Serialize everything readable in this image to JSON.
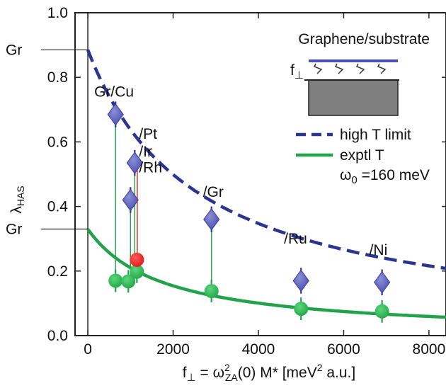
{
  "chart_data": {
    "type": "scatter",
    "xlim": [
      -300,
      8400
    ],
    "ylim": [
      0,
      1.0
    ],
    "x_ticks": [
      0,
      2000,
      4000,
      6000,
      8000
    ],
    "y_ticks": [
      0.0,
      0.2,
      0.4,
      0.6,
      0.8,
      1.0
    ],
    "x_tick_labels": [
      "0",
      "2000",
      "4000",
      "6000",
      "8000"
    ],
    "y_tick_labels": [
      "0.0",
      "0.2",
      "0.4",
      "0.6",
      "0.8",
      "1.0"
    ],
    "xlabel": {
      "pre": "f",
      "pre_sub": "⊥",
      "eq": " = ω",
      "sup": "2",
      "sub": "ZA",
      "post": "(0) M*   [meV",
      "unit_sup": "2",
      "unit_post": " a.u.]"
    },
    "ylabel": {
      "main": "λ",
      "sub": "HAS"
    },
    "gr_marks": {
      "label": "Gr",
      "values": [
        0.885,
        0.33
      ]
    },
    "series": [
      {
        "kind": "high_T",
        "color": "#2b3590",
        "points": [
          {
            "x": 650,
            "y": 0.685,
            "err": 0.04
          },
          {
            "x": 1000,
            "y": 0.42,
            "err": 0.04
          },
          {
            "x": 1100,
            "y": 0.535,
            "err": 0.04
          },
          {
            "x": 2900,
            "y": 0.36,
            "err": 0.04
          },
          {
            "x": 5000,
            "y": 0.17,
            "err": 0.04
          },
          {
            "x": 6900,
            "y": 0.165,
            "err": 0.04
          }
        ],
        "curve": {
          "a": 0.885,
          "b": 0.000387
        }
      },
      {
        "kind": "exptl_T",
        "color": "#22a24a",
        "points": [
          {
            "x": 650,
            "y": 0.17,
            "err": 0.035
          },
          {
            "x": 950,
            "y": 0.168,
            "err": 0.035
          },
          {
            "x": 1150,
            "y": 0.198,
            "err": 0.035
          },
          {
            "x": 2900,
            "y": 0.138,
            "err": 0.035
          },
          {
            "x": 5000,
            "y": 0.083,
            "err": 0.035
          },
          {
            "x": 6900,
            "y": 0.075,
            "err": 0.035
          }
        ],
        "curve": {
          "a": 0.33,
          "b": 0.00057
        }
      },
      {
        "kind": "Pt",
        "color": "#e8231c",
        "points": [
          {
            "x": 1150,
            "y": 0.235,
            "err": 0.0
          }
        ]
      }
    ],
    "drop_lines": [
      {
        "x": 650,
        "from": 0.685,
        "to": 0.17,
        "color": "#22a24a"
      },
      {
        "x": 1000,
        "from": 0.42,
        "to": 0.168,
        "color": "#22a24a"
      },
      {
        "x": 1100,
        "from": 0.535,
        "to": 0.198,
        "color": "#22a24a"
      },
      {
        "x": 2900,
        "from": 0.36,
        "to": 0.138,
        "color": "#22a24a"
      },
      {
        "x": 1160,
        "from": 0.55,
        "to": 0.235,
        "color": "#e8231c"
      }
    ],
    "annotations": [
      {
        "text": "Gr/Cu",
        "x": 150,
        "y": 0.74,
        "color": "#111"
      },
      {
        "text": "/Pt",
        "x": 1200,
        "y": 0.61,
        "color": "#e8231c"
      },
      {
        "text": "/Ir",
        "x": 1200,
        "y": 0.555,
        "color": "#111"
      },
      {
        "text": "/Rh",
        "x": 1200,
        "y": 0.505,
        "color": "#111"
      },
      {
        "text": "/Gr",
        "x": 2700,
        "y": 0.43,
        "color": "#111"
      },
      {
        "text": "/Ru",
        "x": 4600,
        "y": 0.285,
        "color": "#111"
      },
      {
        "text": "/Ni",
        "x": 6600,
        "y": 0.25,
        "color": "#111"
      }
    ],
    "legend": {
      "placement": "top-right",
      "inset_title": "Graphene/substrate",
      "inset_force_label": {
        "main": "f",
        "sub": "⊥"
      },
      "high_T": "high T limit",
      "exptl_T": "exptl T",
      "omega": {
        "symbol": "ω",
        "sub": "0",
        "value": " =160 meV"
      }
    }
  }
}
